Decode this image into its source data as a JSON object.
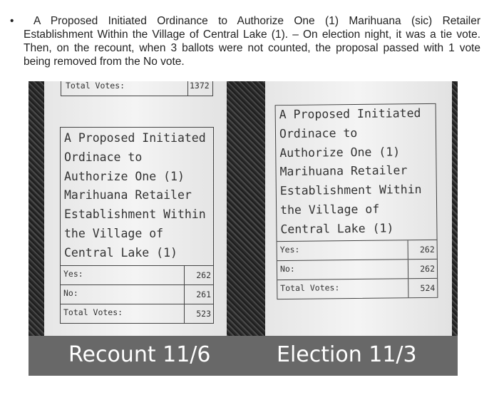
{
  "paragraph": {
    "bullet": "•",
    "text": "A Proposed Initiated Ordinance to Authorize One (1) Marihuana (sic) Retailer Establishment Within the Village of Central Lake (1). – On election night, it was a tie vote. Then, on the recount, when 3 ballots were not counted, the proposal passed with 1 vote being removed from the No vote."
  },
  "photo": {
    "left_receipt": {
      "stub": {
        "label": "Total Votes:",
        "value": "1372"
      },
      "lines": [
        "A Proposed Initiated",
        "Ordinace to",
        "Authorize One (1)",
        "Marihuana Retailer",
        "Establishment Within",
        "the Village of",
        "Central Lake (1)"
      ],
      "rows": [
        {
          "label": "Yes:",
          "value": "262"
        },
        {
          "label": "No:",
          "value": "261"
        },
        {
          "label": "Total Votes:",
          "value": "523"
        }
      ],
      "caption": "Recount 11/6"
    },
    "right_receipt": {
      "lines": [
        "A Proposed Initiated",
        "Ordinace to",
        "Authorize One (1)",
        "Marihuana Retailer",
        "Establishment Within",
        "the Village of",
        "Central Lake (1)"
      ],
      "rows": [
        {
          "label": "Yes:",
          "value": "262"
        },
        {
          "label": "No:",
          "value": "262"
        },
        {
          "label": "Total Votes:",
          "value": "524"
        }
      ],
      "caption": "Election 11/3"
    }
  }
}
